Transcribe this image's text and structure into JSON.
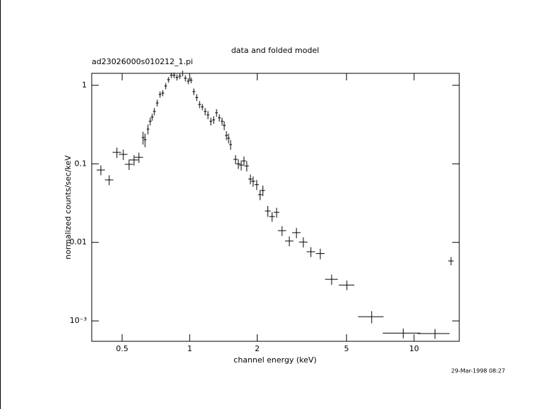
{
  "chart_data": {
    "type": "scatter",
    "title": "data and folded model",
    "subtitle": "ad23026000s010212_1.pi",
    "xlabel": "channel energy (keV)",
    "ylabel": "normalized counts/sec/keV",
    "annotation": "29-Mar-1998 08:27",
    "xlog": true,
    "ylog": true,
    "color": "#000000",
    "xlim": [
      0.366,
      15.9
    ],
    "ylim": [
      0.00055,
      1.42
    ],
    "xticks": [
      0.5,
      1,
      2,
      5,
      10
    ],
    "yticks": [
      {
        "value": 0.001,
        "label": "10⁻³"
      },
      0.01,
      0.1,
      1
    ],
    "x": [
      0.402,
      0.438,
      0.474,
      0.506,
      0.537,
      0.565,
      0.594,
      0.62,
      0.633,
      0.652,
      0.667,
      0.681,
      0.696,
      0.717,
      0.738,
      0.759,
      0.782,
      0.805,
      0.829,
      0.853,
      0.878,
      0.904,
      0.93,
      0.957,
      0.986,
      1.015,
      1.044,
      1.075,
      1.107,
      1.139,
      1.173,
      1.207,
      1.243,
      1.279,
      1.317,
      1.356,
      1.395,
      1.426,
      1.458,
      1.49,
      1.522,
      1.601,
      1.648,
      1.697,
      1.746,
      1.797,
      1.864,
      1.918,
      1.99,
      2.06,
      2.12,
      2.23,
      2.33,
      2.44,
      2.58,
      2.78,
      2.99,
      3.21,
      3.47,
      3.82,
      4.29,
      5.02,
      6.47,
      8.95,
      12.4,
      14.6
    ],
    "xerr": [
      0.017,
      0.019,
      0.021,
      0.022,
      0.023,
      0.025,
      0.026,
      0.009,
      0.009,
      0.009,
      0.01,
      0.01,
      0.01,
      0.01,
      0.011,
      0.011,
      0.011,
      0.012,
      0.012,
      0.012,
      0.013,
      0.013,
      0.013,
      0.014,
      0.014,
      0.015,
      0.015,
      0.016,
      0.016,
      0.016,
      0.017,
      0.017,
      0.018,
      0.019,
      0.019,
      0.02,
      0.02,
      0.021,
      0.021,
      0.022,
      0.022,
      0.035,
      0.036,
      0.037,
      0.038,
      0.039,
      0.04,
      0.042,
      0.043,
      0.045,
      0.046,
      0.065,
      0.068,
      0.071,
      0.11,
      0.12,
      0.13,
      0.14,
      0.15,
      0.17,
      0.28,
      0.4,
      0.84,
      1.7,
      2.0,
      0.42
    ],
    "values": [
      0.0835,
      0.0625,
      0.14,
      0.132,
      0.0986,
      0.112,
      0.121,
      0.216,
      0.203,
      0.277,
      0.348,
      0.394,
      0.465,
      0.596,
      0.764,
      0.796,
      0.98,
      1.18,
      1.34,
      1.34,
      1.26,
      1.31,
      1.42,
      1.23,
      1.13,
      1.16,
      0.83,
      0.7,
      0.57,
      0.53,
      0.465,
      0.42,
      0.348,
      0.363,
      0.447,
      0.386,
      0.348,
      0.308,
      0.23,
      0.212,
      0.176,
      0.114,
      0.1,
      0.0964,
      0.109,
      0.094,
      0.064,
      0.06,
      0.0544,
      0.0405,
      0.0458,
      0.0251,
      0.0213,
      0.0241,
      0.0141,
      0.0104,
      0.0133,
      0.0101,
      0.0076,
      0.0072,
      0.00338,
      0.00286,
      0.00113,
      0.0007,
      0.00069,
      0.0058
    ],
    "yerr": [
      0.012,
      0.009,
      0.021,
      0.02,
      0.015,
      0.017,
      0.018,
      0.04,
      0.04,
      0.04,
      0.04,
      0.04,
      0.05,
      0.06,
      0.07,
      0.07,
      0.09,
      0.1,
      0.11,
      0.11,
      0.11,
      0.11,
      0.12,
      0.11,
      0.1,
      0.1,
      0.08,
      0.07,
      0.06,
      0.05,
      0.05,
      0.05,
      0.04,
      0.04,
      0.05,
      0.04,
      0.04,
      0.04,
      0.03,
      0.03,
      0.025,
      0.015,
      0.014,
      0.014,
      0.015,
      0.014,
      0.009,
      0.009,
      0.008,
      0.006,
      0.007,
      0.004,
      0.003,
      0.0035,
      0.002,
      0.0015,
      0.002,
      0.0015,
      0.0011,
      0.0011,
      0.0005,
      0.0004,
      0.0002,
      0.0001,
      0.0001,
      0.0007
    ]
  }
}
